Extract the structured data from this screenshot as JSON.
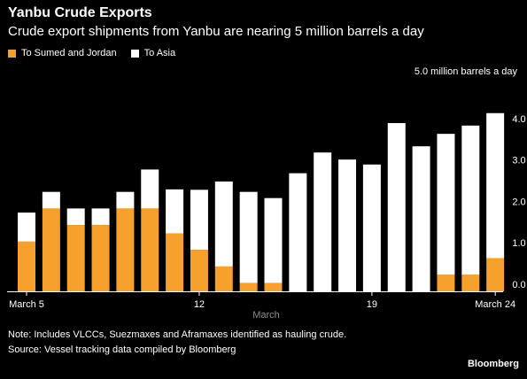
{
  "title": "Yanbu Crude Exports",
  "subtitle": "Crude export shipments from Yanbu are nearing 5 million barrels a day",
  "unit_label": "5.0 million barrels a day",
  "notes": [
    "Note: Includes VLCCs, Suezmaxes and Aframaxes identified as hauling crude.",
    "Source: Vessel tracking data compiled by Bloomberg"
  ],
  "brand": "Bloomberg",
  "colors": {
    "orange": "#f6a02e",
    "white": "#ffffff",
    "background": "#000000",
    "axis_label": "#8c8c8c"
  },
  "chart_data": {
    "type": "bar",
    "stacked": true,
    "categories": [
      "March 5",
      "March 6",
      "March 7",
      "March 8",
      "March 9",
      "March 10",
      "March 11",
      "March 12",
      "March 13",
      "March 14",
      "March 15",
      "March 16",
      "March 17",
      "March 18",
      "March 19",
      "March 20",
      "March 21",
      "March 22",
      "March 23",
      "March 24"
    ],
    "series": [
      {
        "name": "To Sumed and Jordan",
        "color": "#f6a02e",
        "values": [
          1.2,
          2.0,
          1.6,
          1.6,
          2.0,
          2.0,
          1.4,
          1.0,
          0.6,
          0.2,
          0.2,
          0,
          0,
          0,
          0,
          0,
          0,
          0.4,
          0.4,
          0.8
        ]
      },
      {
        "name": "To Asia",
        "color": "#ffffff",
        "values": [
          0.7,
          0.4,
          0.4,
          0.4,
          0.4,
          0.94,
          1.06,
          1.45,
          2.05,
          2.2,
          2.05,
          2.85,
          3.35,
          3.18,
          3.06,
          4.06,
          3.5,
          3.4,
          3.6,
          3.5
        ]
      }
    ],
    "xtick_labels": [
      "March 5",
      "12",
      "19",
      "March 24"
    ],
    "xlabel": "March",
    "yticks": [
      "0.0",
      "1.0",
      "2.0",
      "3.0",
      "4.0"
    ],
    "ylim": [
      0,
      5.0
    ],
    "grid": false,
    "legend_position": "top-left"
  }
}
